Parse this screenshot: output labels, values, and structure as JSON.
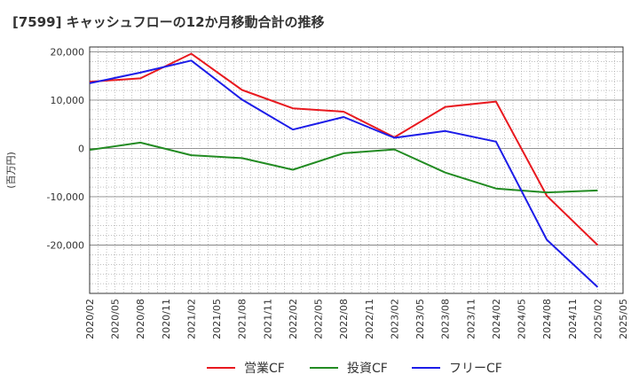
{
  "chart_data": {
    "type": "line",
    "title": "[7599]  キャッシュフローの12か月移動合計の推移",
    "ylabel": "(百万円)",
    "xlabel": "",
    "ylim": [
      -30000,
      21000
    ],
    "yticks": [
      20000,
      10000,
      0,
      -10000,
      -20000
    ],
    "ytick_labels": [
      "20,000",
      "10,000",
      "0",
      "-10,000",
      "-20,000"
    ],
    "categories": [
      "2020/02",
      "2020/05",
      "2020/08",
      "2020/11",
      "2021/02",
      "2021/05",
      "2021/08",
      "2021/11",
      "2022/02",
      "2022/05",
      "2022/08",
      "2022/11",
      "2023/02",
      "2023/05",
      "2023/08",
      "2023/11",
      "2024/02",
      "2024/05",
      "2024/08",
      "2024/11",
      "2025/02",
      "2025/05"
    ],
    "grid": true,
    "legend_position": "bottom",
    "series": [
      {
        "name": "営業CF",
        "color": "#e8191f",
        "x": [
          "2020/02",
          "2020/08",
          "2021/02",
          "2021/08",
          "2022/02",
          "2022/08",
          "2023/02",
          "2023/08",
          "2024/02",
          "2024/08",
          "2025/02"
        ],
        "values": [
          13800,
          14500,
          19600,
          12100,
          8300,
          7600,
          2300,
          8600,
          9700,
          -9800,
          -20000
        ]
      },
      {
        "name": "投資CF",
        "color": "#228b22",
        "x": [
          "2020/02",
          "2020/08",
          "2021/02",
          "2021/08",
          "2022/02",
          "2022/08",
          "2023/02",
          "2023/08",
          "2024/02",
          "2024/08",
          "2025/02"
        ],
        "values": [
          -300,
          1200,
          -1400,
          -2000,
          -4400,
          -1000,
          -200,
          -5000,
          -8300,
          -9100,
          -8700
        ]
      },
      {
        "name": "フリーCF",
        "color": "#1c1ce8",
        "x": [
          "2020/02",
          "2020/08",
          "2021/02",
          "2021/08",
          "2022/02",
          "2022/08",
          "2023/02",
          "2023/08",
          "2024/02",
          "2024/08",
          "2025/02"
        ],
        "values": [
          13500,
          15700,
          18200,
          10100,
          3900,
          6500,
          2200,
          3600,
          1400,
          -18900,
          -28700
        ]
      }
    ]
  }
}
